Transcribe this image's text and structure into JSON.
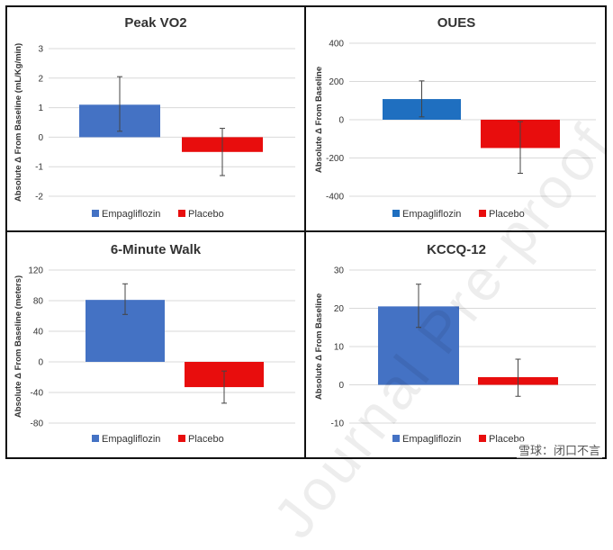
{
  "colors": {
    "empagliflozin": "#4472C4",
    "empagliflozin_oues": "#1F6FC0",
    "placebo": "#E80D0D",
    "grid": "#D9D9D9",
    "text": "#333333",
    "errorbar": "#444444"
  },
  "watermark": "Journal Pre-proof",
  "footer_mark": "雪球：闭口不言",
  "chart_data": [
    {
      "type": "bar",
      "title": "Peak VO2",
      "ylabel": "Absolute Δ From Baseline (mL/Kg/min)",
      "xlabel": "",
      "ylim": [
        -2,
        3
      ],
      "yticks": [
        -2,
        -1,
        0,
        1,
        2,
        3
      ],
      "ytick_labels": [
        "-2",
        "-1",
        "0",
        "1",
        "2",
        "3"
      ],
      "categories": [
        "Empagliflozin",
        "Placebo"
      ],
      "values": [
        1.1,
        -0.5
      ],
      "error_low": [
        0.2,
        -1.3
      ],
      "error_high": [
        2.05,
        0.3
      ],
      "legend": [
        "Empagliflozin",
        "Placebo"
      ],
      "legend_position": "bottom",
      "grid": true
    },
    {
      "type": "bar",
      "title": "OUES",
      "ylabel": "Absolute Δ From Baseline",
      "xlabel": "",
      "ylim": [
        -400,
        400
      ],
      "yticks": [
        -400,
        -200,
        0,
        200,
        400
      ],
      "ytick_labels": [
        "-400",
        "-200",
        "0",
        "200",
        "400"
      ],
      "categories": [
        "Empagliflozin",
        "Placebo"
      ],
      "values": [
        108,
        -148
      ],
      "error_low": [
        15,
        -280
      ],
      "error_high": [
        203,
        -10
      ],
      "legend": [
        "Empagliflozin",
        "Placebo"
      ],
      "legend_position": "bottom",
      "grid": true
    },
    {
      "type": "bar",
      "title": "6-Minute Walk",
      "ylabel": "Absolute Δ From Baseline (meters)",
      "xlabel": "",
      "ylim": [
        -80,
        120
      ],
      "yticks": [
        -80,
        -40,
        0,
        40,
        80,
        120
      ],
      "ytick_labels": [
        "-80",
        "-40",
        "0",
        "40",
        "80",
        "120"
      ],
      "categories": [
        "Empagliflozin",
        "Placebo"
      ],
      "values": [
        81,
        -33
      ],
      "error_low": [
        62,
        -54
      ],
      "error_high": [
        102,
        -12
      ],
      "legend": [
        "Empagliflozin",
        "Placebo"
      ],
      "legend_position": "bottom",
      "grid": true
    },
    {
      "type": "bar",
      "title": "KCCQ-12",
      "ylabel": "Absolute Δ From Baseline",
      "xlabel": "",
      "ylim": [
        -10,
        30
      ],
      "yticks": [
        -10,
        0,
        10,
        20,
        30
      ],
      "ytick_labels": [
        "-10",
        "0",
        "10",
        "20",
        "30"
      ],
      "categories": [
        "Empagliflozin",
        "Placebo"
      ],
      "values": [
        20.5,
        2
      ],
      "error_low": [
        15,
        -3
      ],
      "error_high": [
        26.3,
        6.7
      ],
      "legend": [
        "Empagliflozin",
        "Placebo"
      ],
      "legend_position": "bottom",
      "grid": true
    }
  ]
}
